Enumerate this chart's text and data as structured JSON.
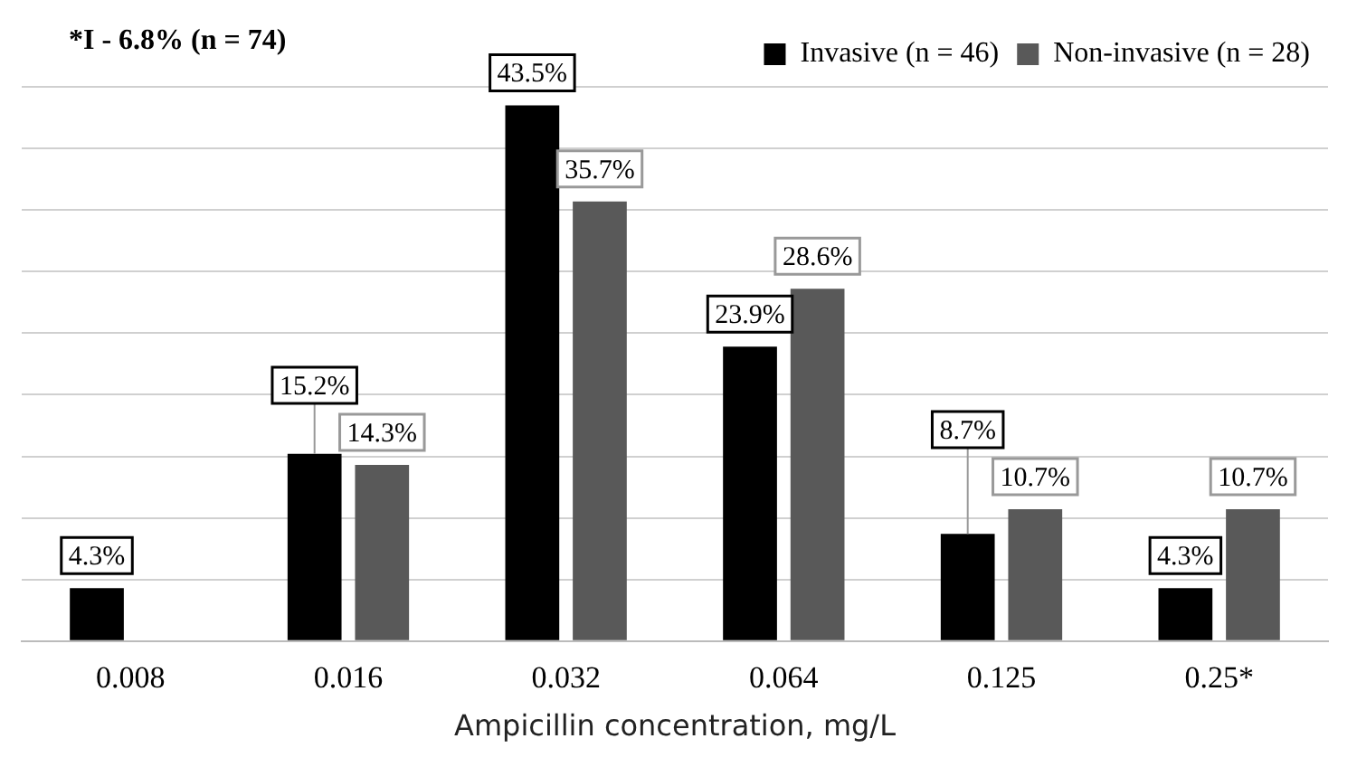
{
  "chart_data": {
    "type": "bar",
    "title": "*I - 6.8% (n = 74)",
    "xlabel": "Ampicillin concentration, mg/L",
    "categories": [
      "0.008",
      "0.016",
      "0.032",
      "0.064",
      "0.125",
      "0.25*"
    ],
    "series": [
      {
        "name": "Invasive (n = 46)",
        "color": "#000000",
        "values": [
          4.3,
          15.2,
          43.5,
          23.9,
          8.7,
          4.3
        ],
        "value_labels": [
          "4.3%",
          "15.2%",
          "43.5%",
          "23.9%",
          "8.7%",
          "4.3%"
        ]
      },
      {
        "name": "Non-invasive (n = 28)",
        "color": "#595959",
        "values": [
          null,
          14.3,
          35.7,
          28.6,
          10.7,
          10.7
        ],
        "value_labels": [
          null,
          "14.3%",
          "35.7%",
          "28.6%",
          "10.7%",
          "10.7%"
        ]
      }
    ],
    "ylim": [
      0,
      45
    ],
    "yticks": [
      {
        "value": 0,
        "label": null
      },
      {
        "value": 5,
        "label": null
      },
      {
        "value": 10,
        "label": null
      },
      {
        "value": 15,
        "label": null
      },
      {
        "value": 20,
        "label": null
      },
      {
        "value": 25,
        "label": null
      },
      {
        "value": 30,
        "label": null
      },
      {
        "value": 35,
        "label": null
      },
      {
        "value": 40,
        "label": null
      },
      {
        "value": 45,
        "label": null
      }
    ],
    "tick_labels": "x",
    "grid": "y",
    "legend": "top right"
  }
}
